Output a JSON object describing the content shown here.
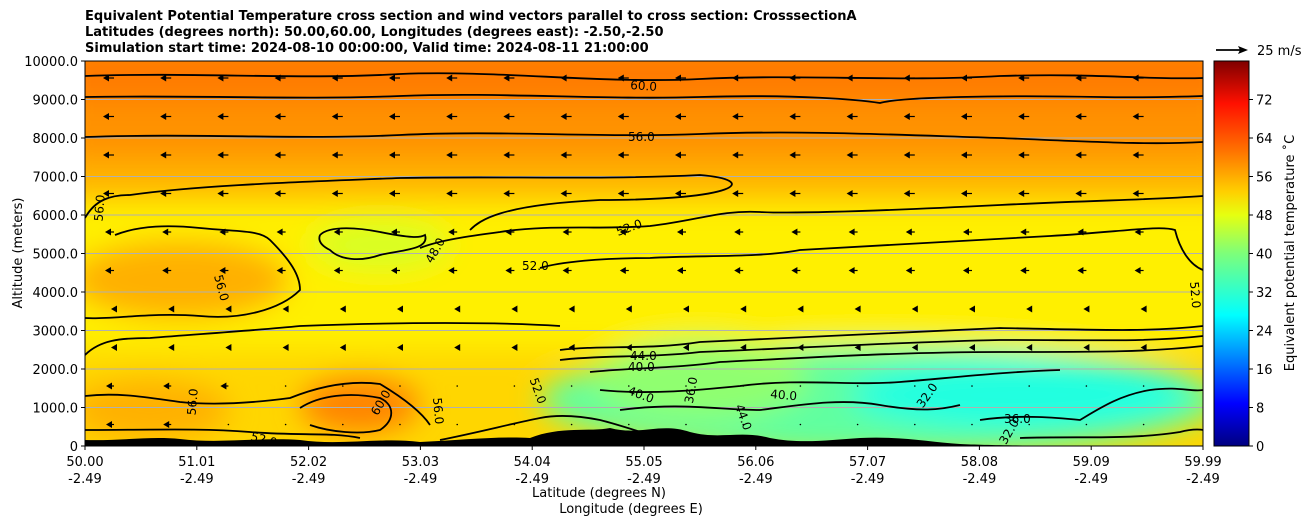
{
  "chart_data": {
    "type": "heatmap",
    "title_lines": [
      "Equivalent Potential Temperature cross section and wind vectors parallel to cross section: CrosssectionA",
      "Latitudes (degrees north): 50.00,60.00, Longitudes (degrees east): -2.50,-2.50",
      "Simulation start time: 2024-08-10 00:00:00, Valid time: 2024-08-11 21:00:00"
    ],
    "ylabel": "Altitude (meters)",
    "xlabel_1": "Latitude (degrees N)",
    "xlabel_2": "Longitude (degrees E)",
    "ylim": [
      0,
      10000
    ],
    "yticks": [
      "0",
      "1000.0",
      "2000.0",
      "3000.0",
      "4000.0",
      "5000.0",
      "6000.0",
      "7000.0",
      "8000.0",
      "9000.0",
      "10000.0"
    ],
    "xticks_lat": [
      "50.00",
      "51.01",
      "52.02",
      "53.03",
      "54.04",
      "55.05",
      "56.06",
      "57.07",
      "58.08",
      "59.09",
      "59.99"
    ],
    "xticks_lon": [
      "-2.49",
      "-2.49",
      "-2.49",
      "-2.49",
      "-2.49",
      "-2.49",
      "-2.49",
      "-2.49",
      "-2.49",
      "-2.49",
      "-2.49"
    ],
    "grid": "horizontal",
    "colorbar": {
      "label": "Equivalent potential temperature $^\\circ$C",
      "label_display": "Equivalent potential temperature ˚C",
      "ticks": [
        "0",
        "8",
        "16",
        "24",
        "32",
        "40",
        "48",
        "56",
        "64",
        "72"
      ],
      "range": [
        0,
        80
      ],
      "colormap": "jet"
    },
    "quiver_key": "25 m/s",
    "contour_labels": [
      "60.0",
      "56.0",
      "56.0",
      "52.0",
      "48.0",
      "52.0",
      "56.0",
      "52.0",
      "44.0",
      "40.0",
      "40.0",
      "36.0",
      "40.0",
      "44.0",
      "32.0",
      "36.0",
      "32.0",
      "52.0",
      "60.0",
      "56.0",
      "56.0",
      "52.0"
    ],
    "field_description": {
      "upper_layer_above_7000m": 58,
      "mid_layer_3500_to_7000m": 52,
      "mid_pocket_near_52N_5000m": 47,
      "low_level_warm_pocket_52_53N_1000m": 58,
      "low_level_cool_region_55_60N_below_3000m": 34
    }
  }
}
